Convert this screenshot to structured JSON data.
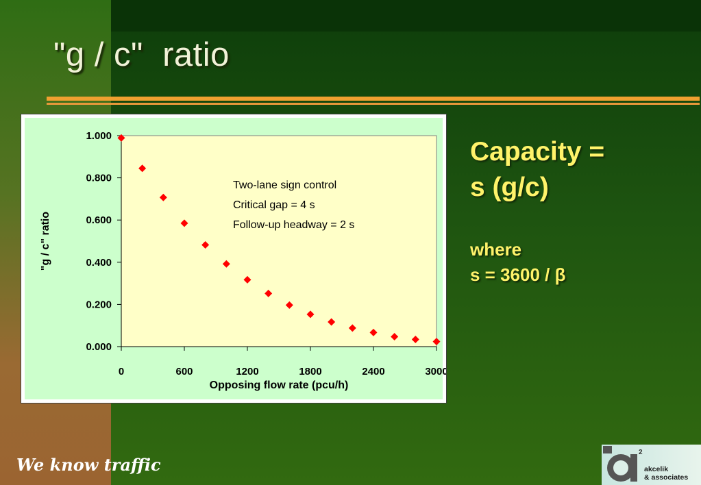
{
  "title": "\"g / c\"  ratio",
  "tagline": "We know traffic",
  "logo": {
    "superscript": "2",
    "line1": "akcelik",
    "line2": "& associates"
  },
  "capacity": {
    "line1": "Capacity =",
    "line2": "s (g/c)"
  },
  "where": {
    "line1": "where",
    "line2": "s = 3600 / β"
  },
  "colors": {
    "title": "#f2f2d8",
    "accent_text": "#fff36a",
    "rule": "#f0a030",
    "plot_background": "#ffffc8",
    "chart_background": "#ccffcc",
    "marker": "#ff0000"
  },
  "chart_data": {
    "type": "scatter",
    "xlabel": "Opposing flow rate (pcu/h)",
    "ylabel": "\"g / c\" ratio",
    "xlim": [
      0,
      3000
    ],
    "ylim": [
      0,
      1
    ],
    "xticks": [
      "0",
      "600",
      "1200",
      "1800",
      "2400",
      "3000"
    ],
    "yticks": [
      "0.000",
      "0.200",
      "0.400",
      "0.600",
      "0.800",
      "1.000"
    ],
    "grid": false,
    "annotations": [
      "Two-lane sign control",
      "Critical gap = 4 s",
      "Follow-up headway = 2 s"
    ],
    "marker": "diamond",
    "x": [
      0,
      200,
      400,
      600,
      800,
      1000,
      1200,
      1400,
      1600,
      1800,
      2000,
      2200,
      2400,
      2600,
      2800,
      3000
    ],
    "y": [
      0.989,
      0.845,
      0.707,
      0.585,
      0.482,
      0.392,
      0.317,
      0.252,
      0.197,
      0.153,
      0.117,
      0.088,
      0.067,
      0.047,
      0.034,
      0.024
    ]
  }
}
